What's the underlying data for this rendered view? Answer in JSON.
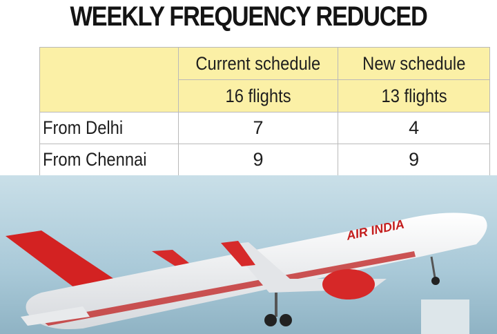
{
  "title": "WEEKLY FREQUENCY REDUCED",
  "table": {
    "columns": [
      {
        "name": "Current schedule",
        "total": "16 flights"
      },
      {
        "name": "New schedule",
        "total": "13 flights"
      }
    ],
    "rows": [
      {
        "label": "From Delhi",
        "values": [
          7,
          4
        ]
      },
      {
        "label": "From Chennai",
        "values": [
          9,
          9
        ]
      }
    ]
  },
  "image": {
    "livery_text": "AIR INDIA"
  }
}
